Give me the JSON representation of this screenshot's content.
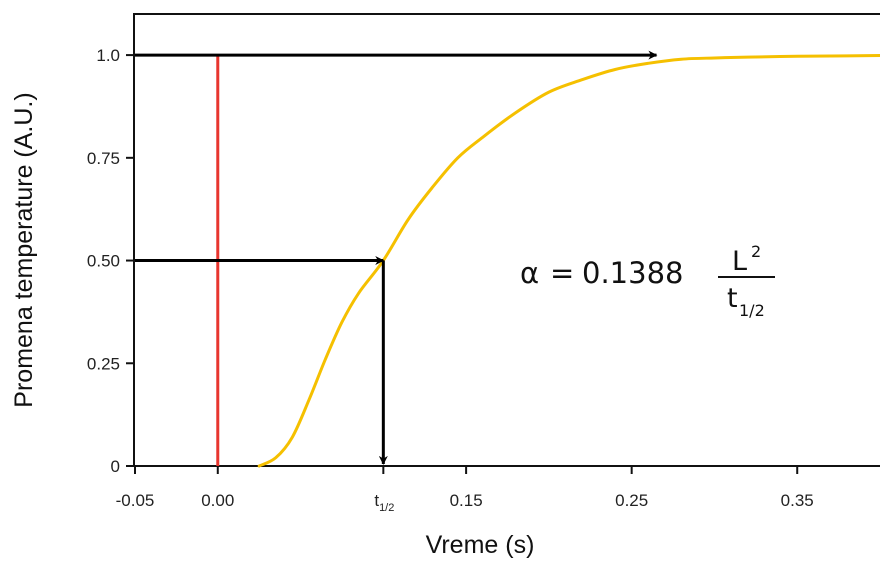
{
  "chart_data": {
    "type": "line",
    "xlabel": "Vreme (s)",
    "ylabel": "Promena temperature (A.U.)",
    "xlim": [
      -0.05,
      0.4
    ],
    "ylim": [
      0,
      1.1
    ],
    "x_ticks": [
      {
        "value": -0.05,
        "label": "-0.05"
      },
      {
        "value": 0.0,
        "label": "0.00"
      },
      {
        "value": 0.1,
        "label": "t",
        "sub": "1/2"
      },
      {
        "value": 0.15,
        "label": "0.15"
      },
      {
        "value": 0.25,
        "label": "0.25"
      },
      {
        "value": 0.35,
        "label": "0.35"
      }
    ],
    "y_ticks": [
      {
        "value": 0,
        "label": "0"
      },
      {
        "value": 0.25,
        "label": "0.25"
      },
      {
        "value": 0.5,
        "label": "0.50"
      },
      {
        "value": 0.75,
        "label": "0.75"
      },
      {
        "value": 1.0,
        "label": "1.0"
      }
    ],
    "series": [
      {
        "color": "#f5c000",
        "x": [
          0.025,
          0.035,
          0.045,
          0.055,
          0.065,
          0.075,
          0.085,
          0.1,
          0.115,
          0.13,
          0.145,
          0.16,
          0.18,
          0.2,
          0.22,
          0.24,
          0.26,
          0.28,
          0.3,
          0.32,
          0.35,
          0.38,
          0.4
        ],
        "y": [
          0.0,
          0.02,
          0.07,
          0.16,
          0.26,
          0.35,
          0.42,
          0.5,
          0.6,
          0.68,
          0.75,
          0.8,
          0.86,
          0.91,
          0.94,
          0.965,
          0.98,
          0.99,
          0.993,
          0.995,
          0.997,
          0.998,
          0.999
        ]
      }
    ],
    "vertical_marker": {
      "x": 0.0,
      "color": "#e8352e"
    },
    "annotations": {
      "arrow_top": {
        "from_x": -0.05,
        "to_x": 0.265,
        "y": 1.0
      },
      "arrow_mid": {
        "from_x": -0.05,
        "to_x": 0.1,
        "y": 0.5
      },
      "arrow_down": {
        "x": 0.1,
        "from_y": 0.5,
        "to_y": 0.0
      },
      "formula": {
        "alpha": "α",
        "equals": "=",
        "coefficient": "0.1388",
        "numerator": "L",
        "numerator_sup": "2",
        "denominator": "t",
        "denominator_sub": "1/2"
      }
    },
    "grid": false,
    "legend": "none"
  }
}
